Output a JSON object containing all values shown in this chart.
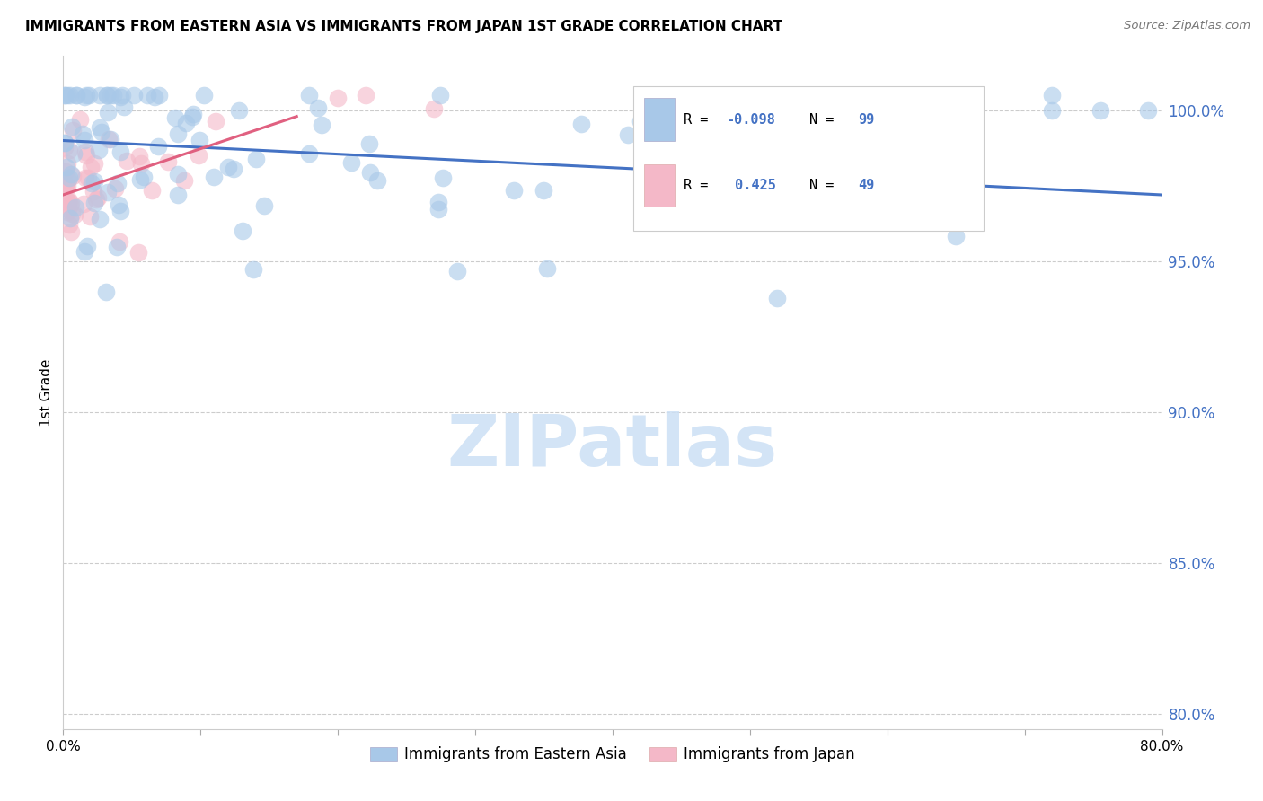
{
  "title": "IMMIGRANTS FROM EASTERN ASIA VS IMMIGRANTS FROM JAPAN 1ST GRADE CORRELATION CHART",
  "source": "Source: ZipAtlas.com",
  "ylabel": "1st Grade",
  "blue_label": "Immigrants from Eastern Asia",
  "pink_label": "Immigrants from Japan",
  "R_blue": -0.098,
  "N_blue": 99,
  "R_pink": 0.425,
  "N_pink": 49,
  "xlim": [
    0.0,
    0.8
  ],
  "ylim": [
    0.795,
    1.018
  ],
  "blue_color": "#a8c8e8",
  "pink_color": "#f4b8c8",
  "trend_blue": "#4472c4",
  "trend_pink": "#e06080",
  "watermark": "ZIPatlas",
  "ytick_vals": [
    0.8,
    0.85,
    0.9,
    0.95,
    1.0
  ],
  "ytick_labels": [
    "80.0%",
    "85.0%",
    "90.0%",
    "95.0%",
    "100.0%"
  ],
  "xtick_vals": [
    0.0,
    0.1,
    0.2,
    0.3,
    0.4,
    0.5,
    0.6,
    0.7,
    0.8
  ],
  "xtick_labels": [
    "0.0%",
    "",
    "",
    "",
    "",
    "",
    "",
    "",
    "80.0%"
  ],
  "background_color": "#ffffff",
  "grid_color": "#cccccc",
  "blue_trend_x0": 0.0,
  "blue_trend_y0": 0.99,
  "blue_trend_x1": 0.8,
  "blue_trend_y1": 0.972,
  "pink_trend_x0": 0.0,
  "pink_trend_y0": 0.972,
  "pink_trend_x1": 0.17,
  "pink_trend_y1": 0.998
}
